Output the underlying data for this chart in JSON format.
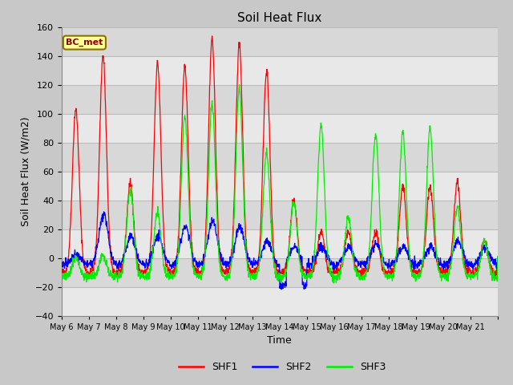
{
  "title": "Soil Heat Flux",
  "xlabel": "Time",
  "ylabel": "Soil Heat Flux (W/m2)",
  "ylim": [
    -40,
    160
  ],
  "yticks": [
    -40,
    -20,
    0,
    20,
    40,
    60,
    80,
    100,
    120,
    140,
    160
  ],
  "annotation_text": "BC_met",
  "annotation_color": "#8B0000",
  "annotation_bg": "#FFFF99",
  "annotation_border": "#8B7000",
  "line_colors": {
    "SHF1": "#FF0000",
    "SHF2": "#0000FF",
    "SHF3": "#00EE00"
  },
  "fig_bg": "#C8C8C8",
  "plot_bg": "#E8E8E8",
  "band_colors": [
    "#E8E8E8",
    "#D8D8D8"
  ],
  "grid_color": "#C8C8C8",
  "n_points": 1600,
  "days": [
    "May 6",
    "May 7",
    "May 8",
    "May 9",
    "May 10",
    "May 11",
    "May 12",
    "May 13",
    "May 14",
    "May 15",
    "May 16",
    "May 17",
    "May 18",
    "May 19",
    "May 20",
    "May 21"
  ]
}
